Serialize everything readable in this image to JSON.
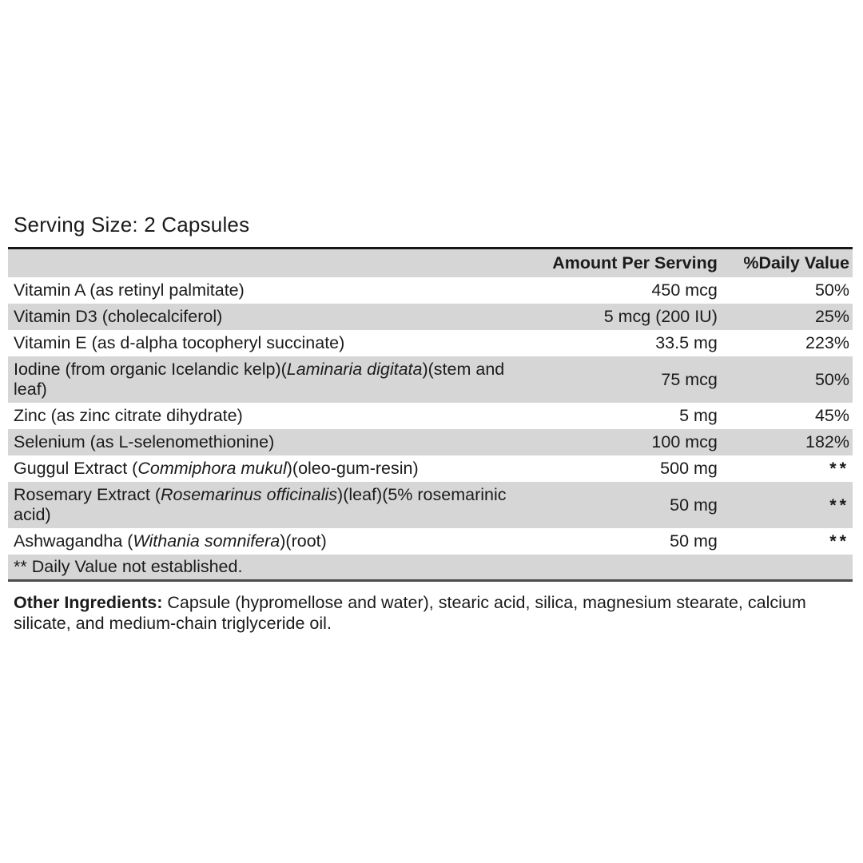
{
  "serving_size": "Serving Size: 2 Capsules",
  "table": {
    "headers": {
      "ingredient": "",
      "amount": "Amount Per Serving",
      "daily_value": "%Daily Value"
    },
    "not_established_symbol": "**",
    "rows": [
      {
        "name": [
          {
            "text": "Vitamin A (as retinyl palmitate)",
            "italic": false
          }
        ],
        "amount": "450 mcg",
        "daily_value": "50%"
      },
      {
        "name": [
          {
            "text": "Vitamin D3 (cholecalciferol)",
            "italic": false
          }
        ],
        "amount": "5 mcg (200 IU)",
        "daily_value": "25%"
      },
      {
        "name": [
          {
            "text": "Vitamin E (as d-alpha tocopheryl succinate)",
            "italic": false
          }
        ],
        "amount": "33.5 mg",
        "daily_value": "223%"
      },
      {
        "name": [
          {
            "text": "Iodine (from organic Icelandic kelp)(",
            "italic": false
          },
          {
            "text": "Laminaria digitata",
            "italic": true
          },
          {
            "text": ")(stem and leaf)",
            "italic": false
          }
        ],
        "amount": "75 mcg",
        "daily_value": "50%"
      },
      {
        "name": [
          {
            "text": "Zinc (as zinc citrate dihydrate)",
            "italic": false
          }
        ],
        "amount": "5 mg",
        "daily_value": "45%"
      },
      {
        "name": [
          {
            "text": "Selenium (as L-selenomethionine)",
            "italic": false
          }
        ],
        "amount": "100 mcg",
        "daily_value": "182%"
      },
      {
        "name": [
          {
            "text": "Guggul Extract (",
            "italic": false
          },
          {
            "text": "Commiphora mukul",
            "italic": true
          },
          {
            "text": ")(oleo-gum-resin)",
            "italic": false
          }
        ],
        "amount": "500 mg",
        "daily_value": "**"
      },
      {
        "name": [
          {
            "text": "Rosemary Extract (",
            "italic": false
          },
          {
            "text": "Rosemarinus officinalis",
            "italic": true
          },
          {
            "text": ")(leaf)(5% rosemarinic acid)",
            "italic": false
          }
        ],
        "amount": "50 mg",
        "daily_value": "**"
      },
      {
        "name": [
          {
            "text": "Ashwagandha (",
            "italic": false
          },
          {
            "text": "Withania somnifera",
            "italic": true
          },
          {
            "text": ")(root)",
            "italic": false
          }
        ],
        "amount": "50 mg",
        "daily_value": "**"
      }
    ],
    "footnote": "** Daily Value not established."
  },
  "other_ingredients": {
    "label": "Other Ingredients:",
    "text": "Capsule (hypromellose and water), stearic acid, silica, magnesium stearate, calcium silicate, and medium-chain triglyceride oil."
  },
  "colors": {
    "row_shade": "#d6d6d6",
    "border_top": "#161616",
    "border_bottom": "#4c4c4c",
    "text": "#1b1b1b",
    "background": "#ffffff"
  }
}
